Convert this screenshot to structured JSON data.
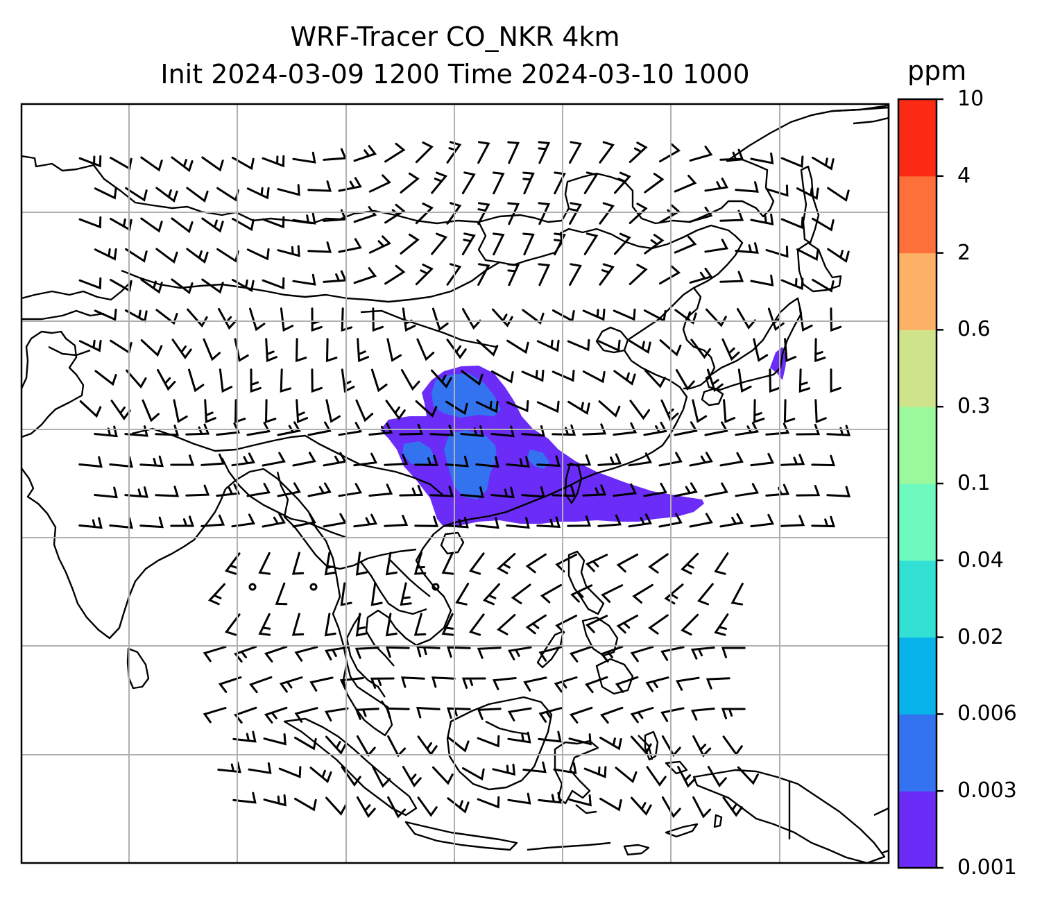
{
  "title": {
    "line1": "WRF-Tracer CO_NKR 4km",
    "line2": "Init 2024-03-09 1200 Time 2024-03-10 1000"
  },
  "colorbar": {
    "unit": "ppm",
    "levels": [
      "0.001",
      "0.003",
      "0.006",
      "0.02",
      "0.04",
      "0.1",
      "0.3",
      "0.6",
      "2",
      "4",
      "10"
    ],
    "colors": [
      "#6b2cf8",
      "#3473f0",
      "#07b3ea",
      "#33e0d4",
      "#6ef9bf",
      "#9bf99b",
      "#cfe38a",
      "#fdb166",
      "#fd7039",
      "#fb2a15"
    ]
  },
  "map": {
    "tracer_plume": {
      "value_range_ppm": [
        "0.001",
        "0.006"
      ],
      "dominant_color": "#6b2cf8",
      "core_color": "#3473f0"
    },
    "wind_barbs": {
      "color": "#000000"
    },
    "coastline_color": "#000000",
    "gridline_color": "#b0b0b0"
  }
}
